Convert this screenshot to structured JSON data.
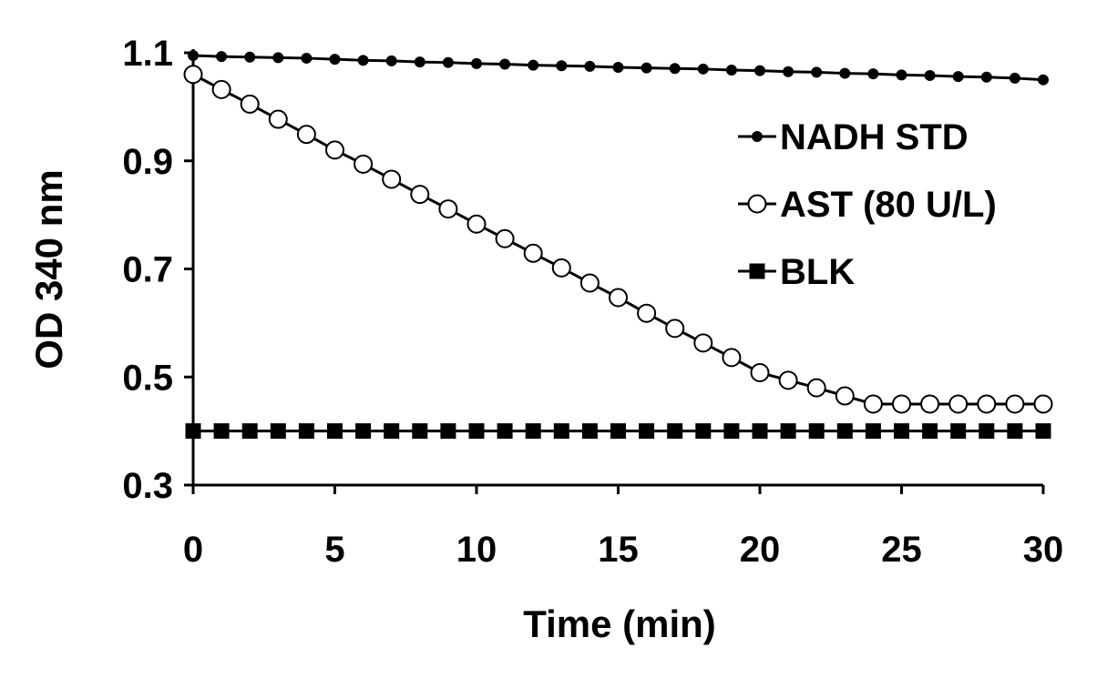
{
  "chart_data": {
    "type": "line",
    "xlabel": "Time (min)",
    "ylabel": "OD 340 nm",
    "xlim": [
      0,
      30
    ],
    "ylim": [
      0.3,
      1.1
    ],
    "xticks": [
      0,
      5,
      10,
      15,
      20,
      25,
      30
    ],
    "yticks": [
      0.3,
      0.5,
      0.7,
      0.9,
      1.1
    ],
    "xtick_labels": [
      "0",
      "5",
      "10",
      "15",
      "20",
      "25",
      "30"
    ],
    "ytick_labels": [
      "0.3",
      "0.5",
      "0.7",
      "0.9",
      "1.1"
    ],
    "grid": false,
    "legend_position": "top-right",
    "x": [
      0,
      1,
      2,
      3,
      4,
      5,
      6,
      7,
      8,
      9,
      10,
      11,
      12,
      13,
      14,
      15,
      16,
      17,
      18,
      19,
      20,
      21,
      22,
      23,
      24,
      25,
      26,
      27,
      28,
      29,
      30
    ],
    "series": [
      {
        "name": "NADH STD",
        "marker": "filled-circle",
        "color": "#000000",
        "values": [
          1.095,
          1.093,
          1.092,
          1.091,
          1.09,
          1.088,
          1.086,
          1.085,
          1.083,
          1.082,
          1.08,
          1.079,
          1.077,
          1.076,
          1.075,
          1.073,
          1.072,
          1.071,
          1.07,
          1.068,
          1.067,
          1.065,
          1.064,
          1.062,
          1.061,
          1.059,
          1.058,
          1.056,
          1.055,
          1.053,
          1.05
        ]
      },
      {
        "name": "AST (80 U/L)",
        "marker": "open-circle",
        "color": "#000000",
        "values": [
          1.06,
          1.032,
          1.005,
          0.977,
          0.949,
          0.92,
          0.894,
          0.866,
          0.838,
          0.811,
          0.783,
          0.756,
          0.729,
          0.702,
          0.674,
          0.647,
          0.618,
          0.59,
          0.563,
          0.536,
          0.508,
          0.494,
          0.48,
          0.465,
          0.45,
          0.45,
          0.45,
          0.45,
          0.45,
          0.45,
          0.45
        ]
      },
      {
        "name": "BLK",
        "marker": "filled-square",
        "color": "#000000",
        "values": [
          0.4,
          0.4,
          0.4,
          0.4,
          0.4,
          0.4,
          0.4,
          0.4,
          0.4,
          0.4,
          0.4,
          0.4,
          0.4,
          0.4,
          0.4,
          0.4,
          0.4,
          0.4,
          0.4,
          0.4,
          0.4,
          0.4,
          0.4,
          0.4,
          0.4,
          0.4,
          0.4,
          0.4,
          0.4,
          0.4,
          0.4
        ]
      }
    ]
  }
}
